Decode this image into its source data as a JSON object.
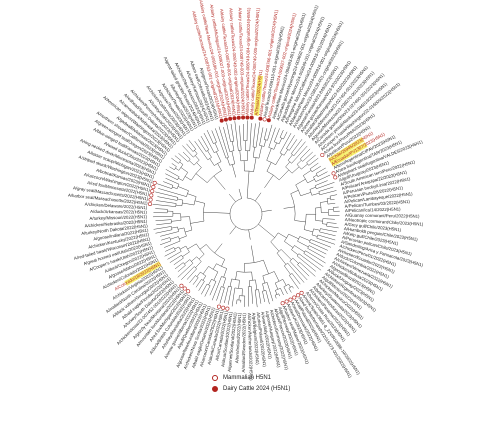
{
  "colors": {
    "branch": "#444444",
    "label_default": "#222222",
    "label_red": "#b2241f",
    "marker": "#b2241f",
    "highlight": "#f3ea3c"
  },
  "legend": [
    {
      "label": "Mammalian H5N1",
      "marker": "open"
    },
    {
      "label": "Dairy Cattle 2024 (H5N1)",
      "marker": "filled"
    }
  ],
  "tips": [
    {
      "label": "A/dairy cattle/Texas/24-008749-001-original/2024(H5N1)",
      "group": "cattle"
    },
    {
      "label": "A/dairy cattle/Texas/24-008749-002-original/2024(H5N1)",
      "group": "cattle"
    },
    {
      "label": "A/dairy cattle/Texas/24-008749-003-original/2024(H5N1)",
      "group": "cattle"
    },
    {
      "label": "A/dairy cattle/Texas/24-008749-004-original/2024(H5N1)",
      "group": "cattle"
    },
    {
      "label": "A/dairy cattle/Texas/24-008749-005-original/2024(H5N1)",
      "group": "cattle"
    },
    {
      "label": "A/Texas/37/2024(H5N1)",
      "group": "human"
    },
    {
      "label": "A/dairy cattle/Texas/24-008766-001-original/2024(H5N1)",
      "group": "cattle"
    },
    {
      "label": "A/cat/Texas/24-009110-001-original/2024(H5N1)",
      "group": "mammal"
    },
    {
      "label": "A/dairy cattle/Texas/24-009027-002-original/2024(H5N1)",
      "group": "cattle"
    },
    {
      "label": "A/skunk/New Mexico/24-006483-001-original/2024(H5N1)",
      "group": "none"
    },
    {
      "label": "A/Canada goose/Wyoming/24-003692-001-original/2024(H5N1)",
      "group": "none"
    },
    {
      "label": "A/grackle/New Mexico/24-003849-001-original/2024(H5N1)",
      "group": "none"
    },
    {
      "label": "A/Peregrine falcon/California/24-005915-001/2024(H5N1)",
      "group": "none"
    },
    {
      "label": "A/blackbird/New Mexico/24-005916-001-original/2024(H5N1)",
      "group": "none"
    },
    {
      "label": "A/chicken/Ohio/23-038138-001-original/2023(H5N1)",
      "group": "none"
    },
    {
      "label": "A/goose/Kansas/W23-849/2023(H5N1)",
      "group": "none"
    },
    {
      "label": "A/snow goose/Kansas/W23-970/2023(H5N1)",
      "group": "none"
    },
    {
      "label": "A/mallard/Washington/W23-810/2023(H5N1)",
      "group": "none"
    },
    {
      "label": "A/turkey/Minnesota/23-027404-001/2023(H5N1)",
      "group": "none"
    },
    {
      "label": "A/goose/Minnesota/23-039270-001/2023(H5N1)",
      "group": "none"
    },
    {
      "label": "A/Canada goose/Ohio/23-027460-001/2023(H5N1)",
      "group": "none"
    },
    {
      "label": "A/northern pintail/Alaska/23-046019/2023(H5N1)",
      "group": "none"
    },
    {
      "label": "A/Cooper's hawk/Washington/22-016009/2022(H5N1)",
      "group": "none"
    },
    {
      "label": "A/sea lion/Peru/PAR/2023(H5N1)",
      "group": "mammal"
    },
    {
      "label": "A/pelican/Peru/2022(H5N1)",
      "group": "none"
    },
    {
      "label": "A/Chile/25945/2023(H5N1)",
      "group": "human"
    },
    {
      "label": "A/Ecuador/PV1307/2023(H5N1)",
      "group": "human"
    },
    {
      "label": "A/tern/Argentina/CIPAV/2023(H5N1)",
      "group": "none"
    },
    {
      "label": "A/sea lion/Argentina/TAR/2023(H5N1)",
      "group": "mammal"
    },
    {
      "label": "A/elephant seal/Argentina/VALDES/2023(H5N1)",
      "group": "mammal"
    },
    {
      "label": "A/gull/Uruguay/2023(H5N1)",
      "group": "none"
    },
    {
      "label": "A/South American tern/Peru/2022(H5N1)",
      "group": "none"
    },
    {
      "label": "A/Pelican/Arequipa/22/2022(H5N1)",
      "group": "none"
    },
    {
      "label": "A/Peruvian booby/Lima/2022(H5N1)",
      "group": "none"
    },
    {
      "label": "A/Pelican/Piura/28/2022(H5N1)",
      "group": "none"
    },
    {
      "label": "A/Pelican/Lambayeque/2022(H5N1)",
      "group": "none"
    },
    {
      "label": "A/Pelican/Tumbes/03/2022(H5N1)",
      "group": "none"
    },
    {
      "label": "A/Pelican/Ica/14/2022(H5N1)",
      "group": "none"
    },
    {
      "label": "A/Guanay cormorant/Peru/2022(H5N1)",
      "group": "none"
    },
    {
      "label": "A/Neotropic cormorant/Chile/2023(H5N1)",
      "group": "none"
    },
    {
      "label": "A/Grey gull/Chile/2023(H5N1)",
      "group": "none"
    },
    {
      "label": "A/Humboldt penguin/Chile/2023(H5N1)",
      "group": "none"
    },
    {
      "label": "A/Kelp gull/Chile/2023(H5N1)",
      "group": "none"
    },
    {
      "label": "A/Peruvian pelican/Chile/2023(H5N1)",
      "group": "none"
    },
    {
      "label": "A/Sanderling/Arica y Parinacota/2023(H5N1)",
      "group": "none"
    },
    {
      "label": "A/chicken/Peru/01/2022(H5N1)",
      "group": "none"
    },
    {
      "label": "A/chicken/Ecuador/2022(H5N1)",
      "group": "none"
    },
    {
      "label": "A/duck/Colombia/2022(H5N1)",
      "group": "none"
    },
    {
      "label": "A/chicken/Venezuela/2022(H5N1)",
      "group": "none"
    },
    {
      "label": "A/chicken/Bolivia/2023(H5N1)",
      "group": "none"
    },
    {
      "label": "A/goose/Brazil/2023(H5N1)",
      "group": "none"
    },
    {
      "label": "A/duck/Uruguay/2023(H5N1)",
      "group": "none"
    },
    {
      "label": "A/chicken/Argentina/2023(H5N1)",
      "group": "none"
    },
    {
      "label": "A/gull/Mexico/2022(H5N1)",
      "group": "none"
    },
    {
      "label": "A/chicken/Mexico/2022(H5N1)",
      "group": "none"
    },
    {
      "label": "A/turkey/Guatemala/2023(H5N1)",
      "group": "none"
    },
    {
      "label": "A/pelican/Honduras/2023(H5N1)",
      "group": "none"
    },
    {
      "label": "A/chicken/Panama/2023(H5N1)",
      "group": "none"
    },
    {
      "label": "A/heron/Costa Rica/2023(H5N1)",
      "group": "none"
    },
    {
      "label": "A/mink/Spain/3691-8_22VIR10586-10/2022(H5N1)",
      "group": "mammal"
    },
    {
      "label": "A/red fox/Netherlands/22015473-001/2022(H5N1)",
      "group": "mammal"
    },
    {
      "label": "A/cat/Poland/2023(H5N1)",
      "group": "mammal"
    },
    {
      "label": "A/seal/Denmark/2022(H5N1)",
      "group": "mammal"
    },
    {
      "label": "A/otter/UK/2023(H5N1)",
      "group": "mammal"
    },
    {
      "label": "A/harbor seal/Maine/2023(H5N1)",
      "group": "mammal"
    },
    {
      "label": "A/gull/Norway/2022(H5N1)",
      "group": "none"
    },
    {
      "label": "A/duck/France/2022(H5N1)",
      "group": "none"
    },
    {
      "label": "A/chicken/Germany/2022(H5N1)",
      "group": "none"
    },
    {
      "label": "A/goose/Hungary/2022(H5N1)",
      "group": "none"
    },
    {
      "label": "A/swan/Italy/2022(H5N1)",
      "group": "none"
    },
    {
      "label": "A/turkey/Poland/2022(H5N1)",
      "group": "none"
    },
    {
      "label": "A/gull/Belgium/2022(H5N1)",
      "group": "none"
    },
    {
      "label": "A/chicken/Netherlands/2022(H5N1)",
      "group": "none"
    },
    {
      "label": "A/mallard/Sweden/2022(H5N1)",
      "group": "none"
    },
    {
      "label": "A/tern/Ireland/2022(H5N1)",
      "group": "none"
    },
    {
      "label": "A/gannet/Scotland/2022(H5N1)",
      "group": "none"
    },
    {
      "label": "A/skua/Scotland/2022(H5N1)",
      "group": "none"
    },
    {
      "label": "A/fox/Canada/2022(H5N1)",
      "group": "mammal"
    },
    {
      "label": "A/skunk/Canada/2022(H5N1)",
      "group": "mammal"
    },
    {
      "label": "A/raccoon/Canada/2022(H5N1)",
      "group": "mammal"
    },
    {
      "label": "A/bald eagle/Ontario/2022(H5N1)",
      "group": "none"
    },
    {
      "label": "A/chicken/Nova Scotia/2022(H5N1)",
      "group": "none"
    },
    {
      "label": "A/goose/Newfoundland/2022(H5N1)",
      "group": "none"
    },
    {
      "label": "A/gull/Quebec/2022(H5N1)",
      "group": "none"
    },
    {
      "label": "A/snow goose/Alberta/2022(H5N1)",
      "group": "none"
    },
    {
      "label": "A/turkey/Manitoba/2022(H5N1)",
      "group": "none"
    },
    {
      "label": "A/duck/British Columbia/2022(H5N1)",
      "group": "none"
    },
    {
      "label": "A/red fox/Michigan/2022(H5N1)",
      "group": "mammal"
    },
    {
      "label": "A/mountain lion/Montana/2022(H5N1)",
      "group": "mammal"
    },
    {
      "label": "A/grizzly bear/Montana/2022(H5N1)",
      "group": "mammal"
    },
    {
      "label": "A/chicken/Iowa/22-007452-001/2022(H5N1)",
      "group": "none"
    },
    {
      "label": "A/turkey/South Dakota/2022(H5N1)",
      "group": "none"
    },
    {
      "label": "A/bald eagle/Florida/2022(H5N1)",
      "group": "none"
    },
    {
      "label": "A/black vulture/Georgia/2022(H5N1)",
      "group": "none"
    },
    {
      "label": "A/mallard/North Carolina/2022(H5N1)",
      "group": "none"
    },
    {
      "label": "A/chicken/Virginia/2022(H5N1)",
      "group": "none"
    },
    {
      "label": "A/Colorado/18/2022(H5N1)",
      "group": "human"
    },
    {
      "label": "A/chicken/Colorado/2022(H5N1)",
      "group": "none"
    },
    {
      "label": "A/goose/Idaho/2022(H5N1)",
      "group": "none"
    },
    {
      "label": "A/duck/Oregon/2022(H5N1)",
      "group": "none"
    },
    {
      "label": "A/Cooper's hawk/Utah/2022(H5N1)",
      "group": "none"
    },
    {
      "label": "A/great horned owl/Utah/2022(H5N1)",
      "group": "none"
    },
    {
      "label": "A/red-tailed hawk/Wisconsin/2022(H5N1)",
      "group": "none"
    },
    {
      "label": "A/chicken/Kentucky/2022(H5N1)",
      "group": "none"
    },
    {
      "label": "A/goose/Indiana/2022(H5N1)",
      "group": "none"
    },
    {
      "label": "A/turkey/North Dakota/2022(H5N1)",
      "group": "none"
    },
    {
      "label": "A/chicken/Nebraska/2022(H5N1)",
      "group": "none"
    },
    {
      "label": "A/turkey/Missouri/2022(H5N1)",
      "group": "none"
    },
    {
      "label": "A/duck/Arkansas/2022(H5N1)",
      "group": "none"
    },
    {
      "label": "A/chicken/Delaware/2022(H5N1)",
      "group": "none"
    },
    {
      "label": "A/harbor seal/Massachusetts/2022(H5N1)",
      "group": "mammal"
    },
    {
      "label": "A/gray seal/Massachusetts/2022(H5N1)",
      "group": "mammal"
    },
    {
      "label": "A/red fox/Minnesota/2022(H5N1)",
      "group": "mammal"
    },
    {
      "label": "A/raccoon/Washington/2022(H5N1)",
      "group": "mammal"
    },
    {
      "label": "A/bobcat/Kansas/2023(H5N1)",
      "group": "mammal"
    },
    {
      "label": "A/striped skunk/Washington/2023(H5N1)",
      "group": "mammal"
    },
    {
      "label": "A/lesser scaup/Michigan/2023(H5N1)",
      "group": "none"
    },
    {
      "label": "A/ring-necked duck/Minnesota/2023(H5N1)",
      "group": "none"
    },
    {
      "label": "A/wood duck/Ohio/2023(H5N1)",
      "group": "none"
    },
    {
      "label": "A/blue-winged teal/Kansas/2023(H5N1)",
      "group": "none"
    },
    {
      "label": "A/green-winged teal/Oregon/2023(H5N1)",
      "group": "none"
    },
    {
      "label": "A/northern shoveler/California/2023(H5N1)",
      "group": "none"
    },
    {
      "label": "A/gadwall/Arkansas/2023(H5N1)",
      "group": "none"
    },
    {
      "label": "A/American wigeon/Washington/2023(H5N1)",
      "group": "none"
    },
    {
      "label": "A/canvasback/Nebraska/2023(H5N1)",
      "group": "none"
    },
    {
      "label": "A/redhead/South Dakota/2023(H5N1)",
      "group": "none"
    },
    {
      "label": "A/chicken/Pennsylvania/2023(H5N1)",
      "group": "none"
    },
    {
      "label": "A/turkey/Utah/2023(H5N1)",
      "group": "none"
    },
    {
      "label": "A/chicken/California/2023(H5N1)",
      "group": "none"
    },
    {
      "label": "A/goose/Texas/2023(H5N1)",
      "group": "none"
    },
    {
      "label": "A/chicken/Texas/2023(H5N1)",
      "group": "none"
    },
    {
      "label": "A/turkey/Iowa/2023(H5N1)",
      "group": "none"
    },
    {
      "label": "A/great-tailed grackle/Texas/2024(H5N1)",
      "group": "none"
    },
    {
      "label": "A/chicken/New Mexico/2024(H5N1)",
      "group": "none"
    },
    {
      "label": "A/turkey/Kansas/2024(H5N1)",
      "group": "none"
    },
    {
      "label": "A/barn owl/Colorado/2024(H5N1)",
      "group": "none"
    },
    {
      "label": "A/pigeon/Texas/2024(H5N1)",
      "group": "none"
    },
    {
      "label": "A/dairy cattle/Kansas/24-008763-001-original/2024(H5N1)",
      "group": "cattle"
    },
    {
      "label": "A/dairy cattle/New Mexico/24-009196-001-original/2024(H5N1)",
      "group": "cattle"
    },
    {
      "label": "A/dairy cattle/Michigan/24-009027-003-original/2024(H5N1)",
      "group": "cattle"
    }
  ]
}
